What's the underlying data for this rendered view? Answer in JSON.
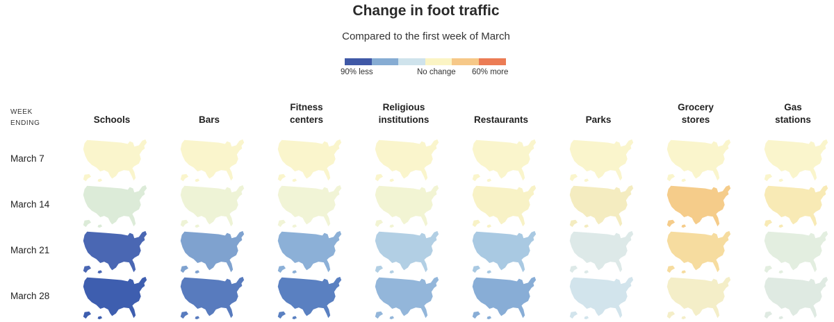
{
  "title": "Change in foot traffic",
  "subtitle": "Compared to the first week of March",
  "legend": {
    "colors": [
      "#3f58a6",
      "#86acd3",
      "#cfe3ec",
      "#fbf4c4",
      "#f6c888",
      "#ec7c55"
    ],
    "labels": [
      "90% less",
      "No change",
      "60% more"
    ]
  },
  "week_header": [
    "WEEK",
    "ENDING"
  ],
  "columns": [
    {
      "name": [
        "Schools"
      ]
    },
    {
      "name": [
        "Bars"
      ]
    },
    {
      "name": [
        "Fitness",
        "centers"
      ]
    },
    {
      "name": [
        "Religious",
        "institutions"
      ]
    },
    {
      "name": [
        "Restaurants"
      ]
    },
    {
      "name": [
        "Parks"
      ]
    },
    {
      "name": [
        "Grocery",
        "stores"
      ]
    },
    {
      "name": [
        "Gas",
        "stations"
      ]
    }
  ],
  "rows": [
    {
      "label": "March 7",
      "fills": [
        "#faf5cc",
        "#faf5cc",
        "#faf5cc",
        "#faf5cc",
        "#faf5cc",
        "#faf5cc",
        "#faf5cc",
        "#faf5cc"
      ]
    },
    {
      "label": "March 14",
      "fills": [
        "#dcebd8",
        "#eef3d6",
        "#f1f4d6",
        "#f2f4d3",
        "#f8f2c6",
        "#f4ecc0",
        "#f5cc8a",
        "#f8eab5"
      ]
    },
    {
      "label": "March 21",
      "fills": [
        "#4a67b3",
        "#7fa2cf",
        "#8cb0d7",
        "#b2cfe4",
        "#a9c9e2",
        "#dde9e8",
        "#f6dc9f",
        "#e3eee0"
      ]
    },
    {
      "label": "March 28",
      "fills": [
        "#3e5eaf",
        "#587bbe",
        "#5a80c1",
        "#93b6da",
        "#88add6",
        "#d2e4ec",
        "#f4eec8",
        "#dfeae2"
      ]
    }
  ]
}
